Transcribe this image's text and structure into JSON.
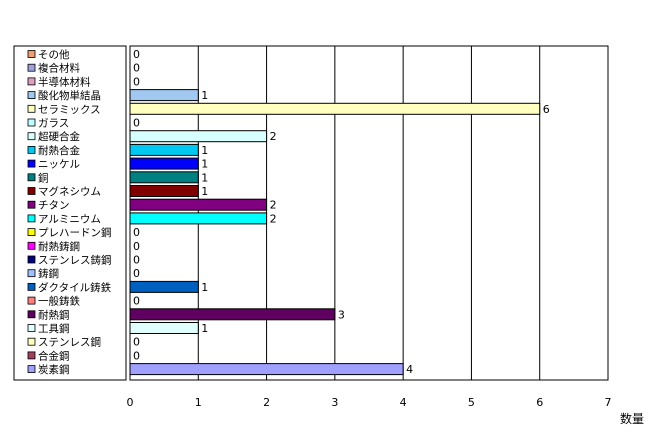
{
  "chart_data": {
    "type": "bar",
    "orientation": "horizontal",
    "title": "",
    "xlabel": "数量",
    "ylabel": "",
    "xlim": [
      0,
      7
    ],
    "x_ticks": [
      "0",
      "1",
      "2",
      "3",
      "4",
      "5",
      "6",
      "7"
    ],
    "grid": true,
    "legend_position": "left",
    "categories": [
      "その他",
      "複合材料",
      "半導体材料",
      "酸化物単結晶",
      "セラミックス",
      "ガラス",
      "超硬合金",
      "耐熱合金",
      "ニッケル",
      "銅",
      "マグネシウム",
      "チタン",
      "アルミニウム",
      "プレハードン鋼",
      "耐熱鋳鋼",
      "ステンレス鋳鋼",
      "鋳鋼",
      "ダクタイル鋳鉄",
      "一般鋳鉄",
      "耐熱鋼",
      "工具鋼",
      "ステンレス鋼",
      "合金鋼",
      "炭素鋼"
    ],
    "values": [
      0,
      0,
      0,
      1,
      6,
      0,
      2,
      1,
      1,
      1,
      1,
      2,
      2,
      0,
      0,
      0,
      0,
      1,
      0,
      3,
      1,
      0,
      0,
      4
    ],
    "value_labels": [
      "0",
      "0",
      "0",
      "1",
      "6",
      "0",
      "2",
      "1",
      "1",
      "1",
      "1",
      "2",
      "2",
      "0",
      "0",
      "0",
      "0",
      "1",
      "0",
      "3",
      "1",
      "0",
      "0",
      "4"
    ],
    "colors": [
      "#f0a070",
      "#a0a0e0",
      "#e0a0c0",
      "#a0c8f0",
      "#ffffc0",
      "#c0ffff",
      "#d8ffff",
      "#00c8f0",
      "#0000ff",
      "#008080",
      "#800000",
      "#800080",
      "#00ffff",
      "#ffff00",
      "#ff00ff",
      "#000080",
      "#a0c0ff",
      "#0060c0",
      "#ff8080",
      "#600060",
      "#e0ffff",
      "#ffffc0",
      "#a04060",
      "#a0a0ff"
    ]
  }
}
